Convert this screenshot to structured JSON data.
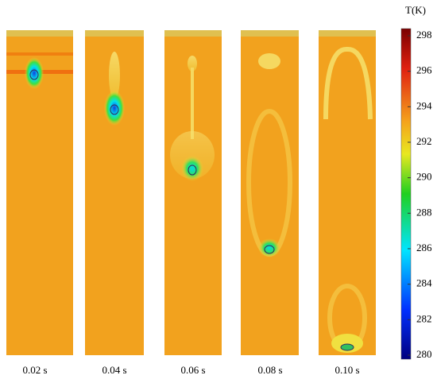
{
  "panels": [
    {
      "label": "0.02 s"
    },
    {
      "label": "0.04 s"
    },
    {
      "label": "0.06 s"
    },
    {
      "label": "0.08 s"
    },
    {
      "label": "0.10 s"
    }
  ],
  "colorbar": {
    "title": "T(K)",
    "range": [
      280,
      298
    ],
    "ticks": [
      280,
      282,
      284,
      286,
      288,
      290,
      292,
      294,
      296,
      298
    ]
  }
}
